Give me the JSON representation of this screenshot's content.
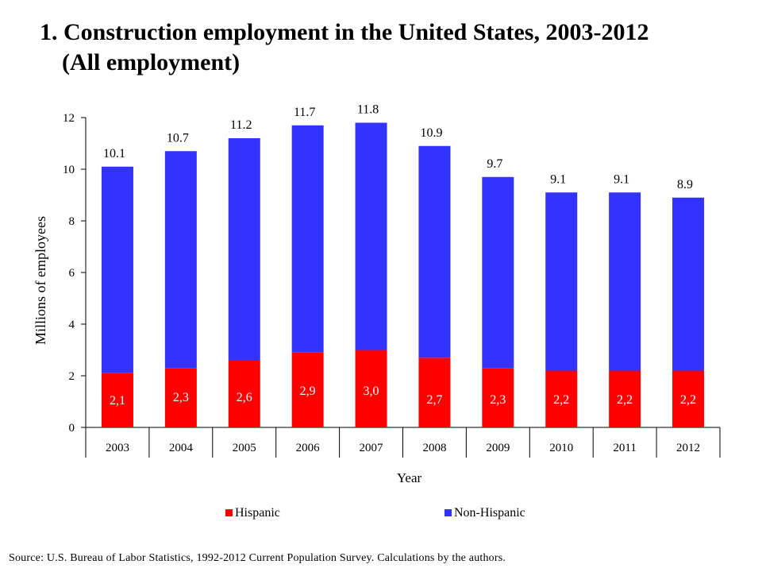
{
  "title": {
    "line1": "1. Construction employment in the United States, 2003-2012",
    "line2": "(All employment)"
  },
  "source": "Source: U.S. Bureau of Labor Statistics, 1992-2012 Current Population Survey. Calculations by the authors.",
  "colors": {
    "hispanic": "#ff0000",
    "non_hispanic": "#3333ff"
  },
  "chart_data": {
    "type": "bar",
    "stacked": true,
    "categories": [
      "2003",
      "2004",
      "2005",
      "2006",
      "2007",
      "2008",
      "2009",
      "2010",
      "2011",
      "2012"
    ],
    "series": [
      {
        "name": "Hispanic",
        "values": [
          2.1,
          2.3,
          2.6,
          2.9,
          3.0,
          2.7,
          2.3,
          2.2,
          2.2,
          2.2
        ],
        "labels": [
          "2,1",
          "2,3",
          "2,6",
          "2,9",
          "3,0",
          "2,7",
          "2,3",
          "2,2",
          "2,2",
          "2,2"
        ]
      },
      {
        "name": "Non-Hispanic",
        "values": [
          8.0,
          8.4,
          8.6,
          8.8,
          8.8,
          8.2,
          7.4,
          6.9,
          6.9,
          6.7
        ]
      }
    ],
    "totals": [
      10.1,
      10.7,
      11.2,
      11.7,
      11.8,
      10.9,
      9.7,
      9.1,
      9.1,
      8.9
    ],
    "total_labels": [
      "10.1",
      "10.7",
      "11.2",
      "11.7",
      "11.8",
      "10.9",
      "9.7",
      "9.1",
      "9.1",
      "8.9"
    ],
    "xlabel": "Year",
    "ylabel": "Millions of employees",
    "ylim": [
      0,
      12
    ],
    "yticks": [
      "0",
      "2",
      "4",
      "6",
      "8",
      "10",
      "12"
    ],
    "grid": false,
    "legend": "bottom"
  }
}
